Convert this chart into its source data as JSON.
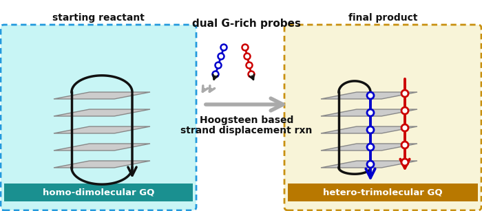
{
  "left_box_color": "#c8f5f5",
  "left_box_border": "#2299dd",
  "right_box_color": "#f8f4d8",
  "right_box_border": "#c89010",
  "left_label_bg": "#1a9090",
  "right_label_bg": "#b87800",
  "label_text_color": "#ffffff",
  "left_label": "homo-dimolecular GQ",
  "right_label": "hetero-trimolecular GQ",
  "left_sublabel": "starting reactant",
  "right_sublabel": "final product",
  "top_text": "dual G-rich probes",
  "bottom_text_line1": "Hoogsteen based",
  "bottom_text_line2": "strand displacement rxn",
  "plate_face": "#cccccc",
  "plate_edge": "#888888",
  "black": "#111111",
  "blue": "#0000cc",
  "red": "#cc0000",
  "gray_arrow": "#aaaaaa",
  "background": "#ffffff"
}
